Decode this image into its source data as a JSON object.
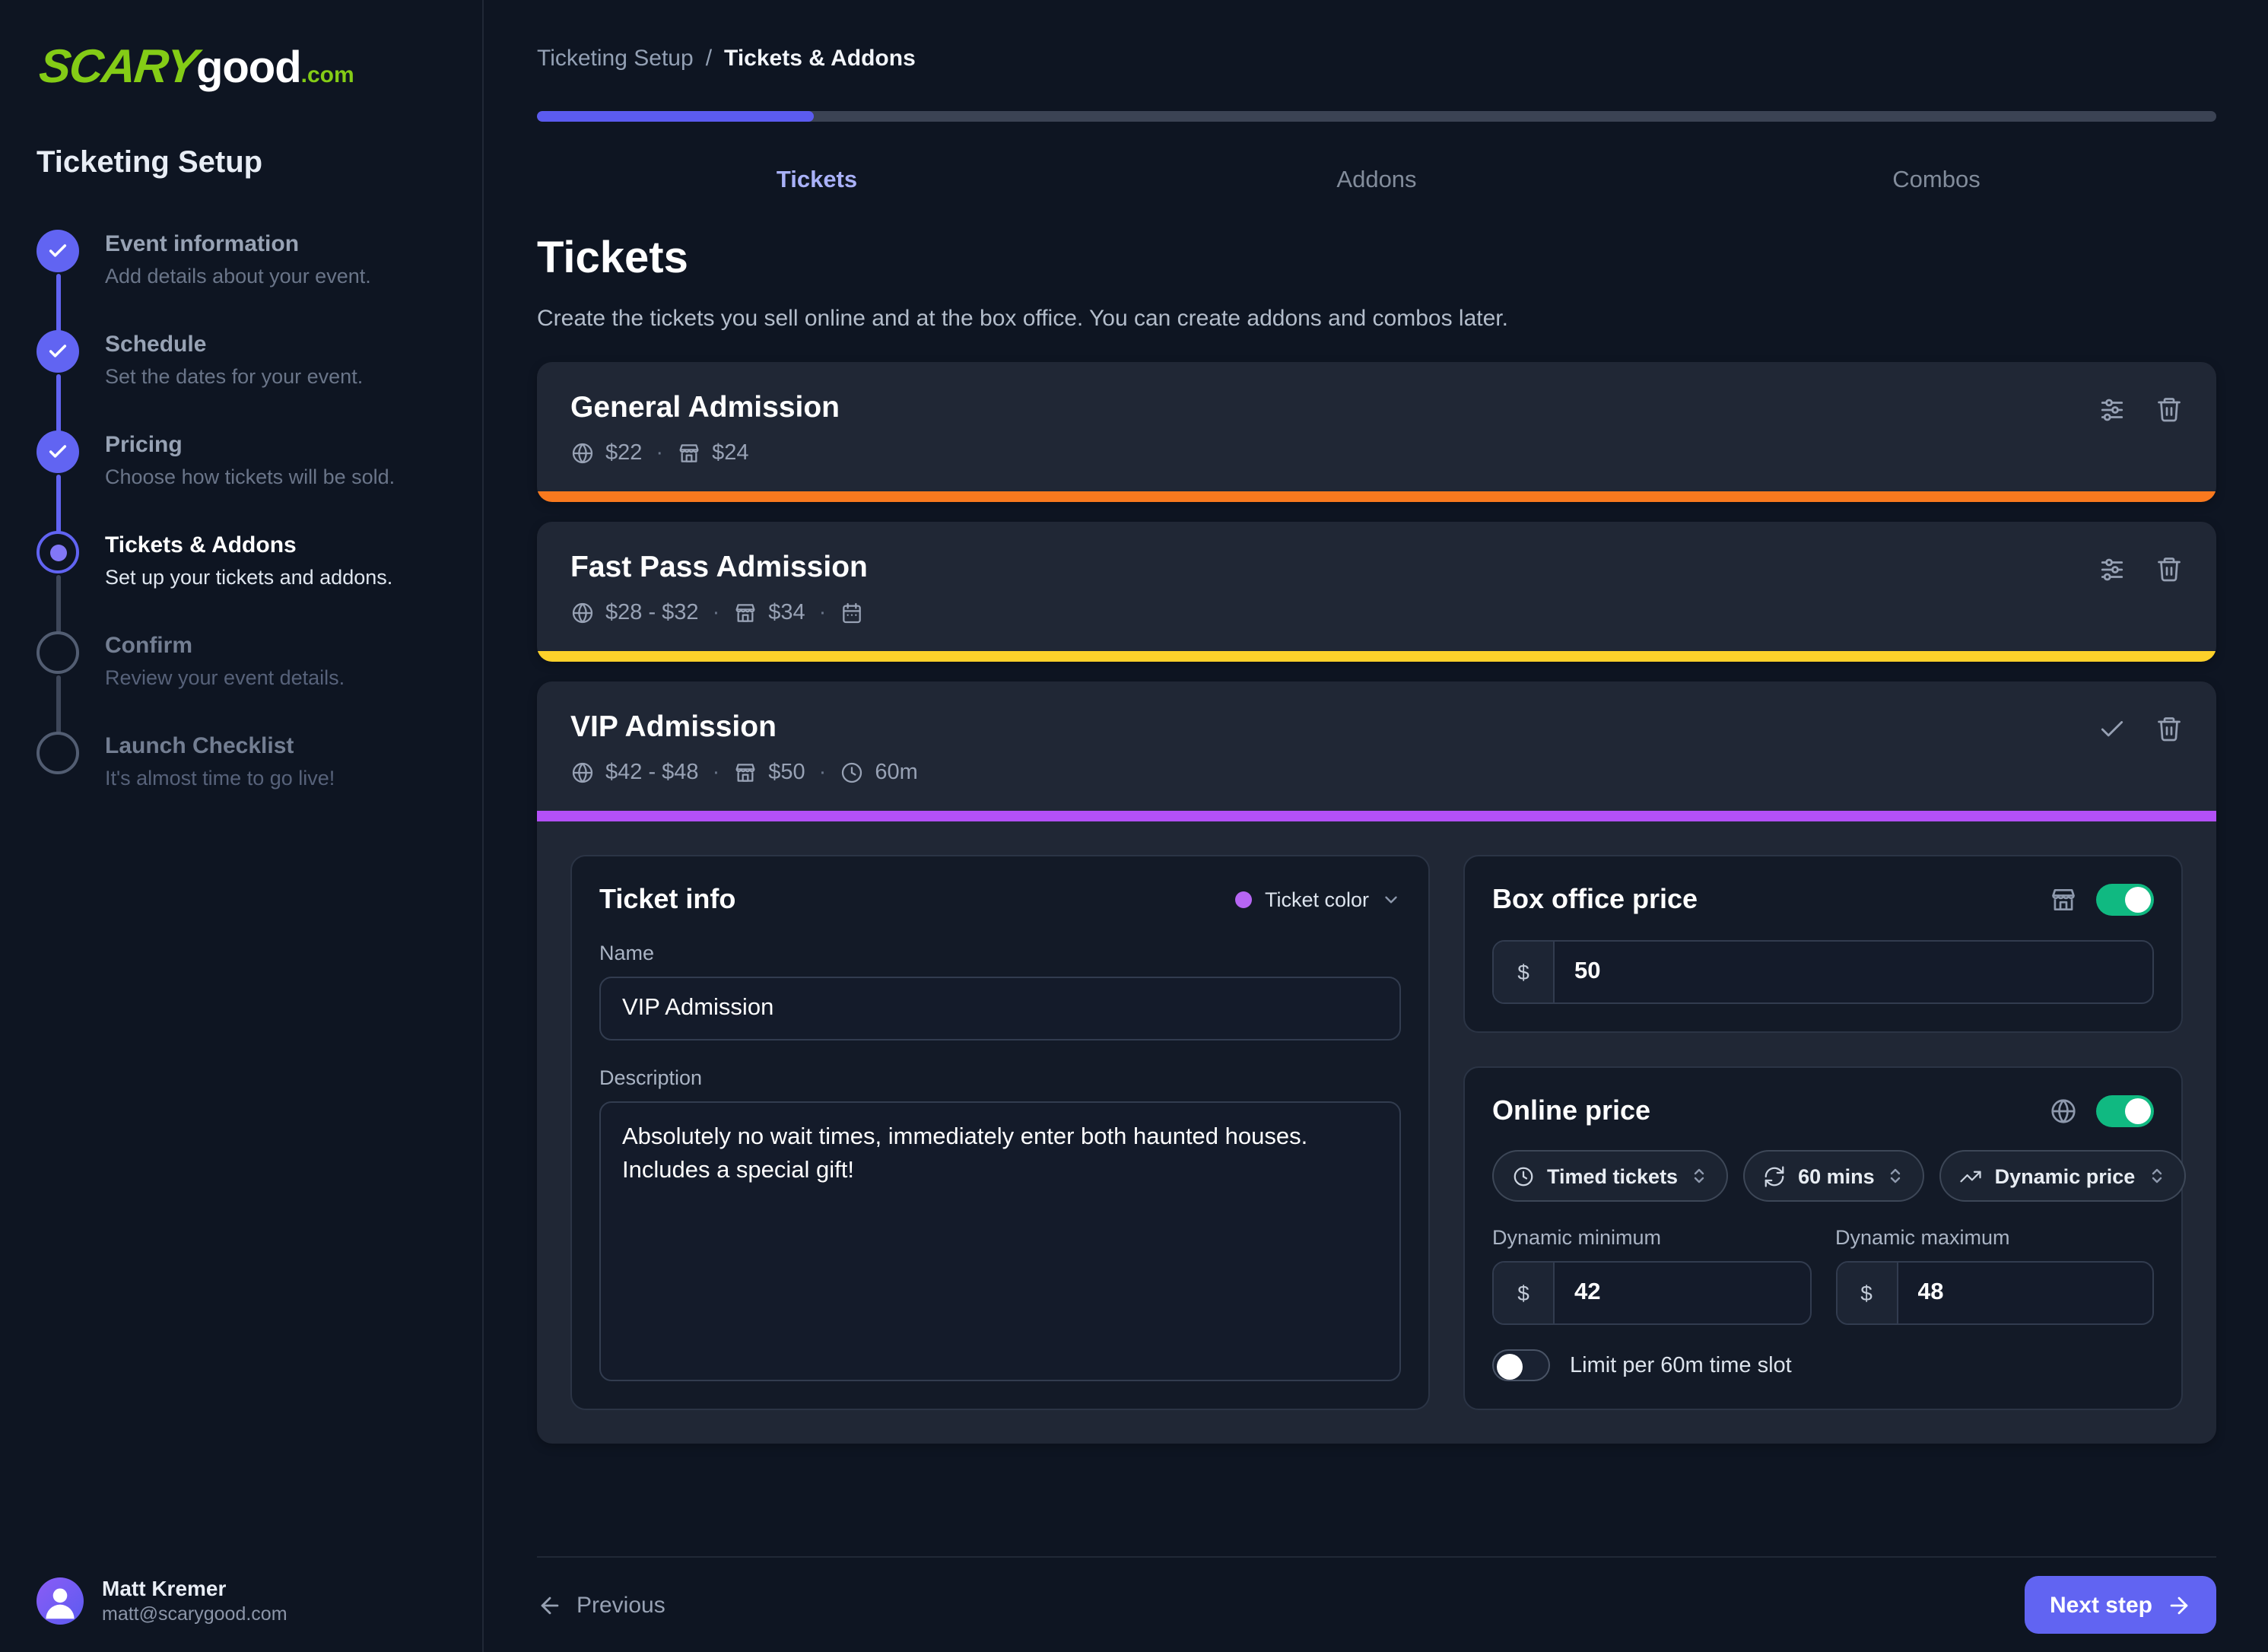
{
  "logo": {
    "part1": "SCARY",
    "part2": "good",
    "part3": ".com",
    "accent": "#84cc16"
  },
  "sidebar": {
    "title": "Ticketing Setup",
    "steps": [
      {
        "title": "Event information",
        "subtitle": "Add details about your event.",
        "state": "completed",
        "connector": "#6164f2"
      },
      {
        "title": "Schedule",
        "subtitle": "Set the dates for your event.",
        "state": "completed",
        "connector": "#6164f2"
      },
      {
        "title": "Pricing",
        "subtitle": "Choose how tickets will be sold.",
        "state": "completed",
        "connector": "#6164f2"
      },
      {
        "title": "Tickets & Addons",
        "subtitle": "Set up your tickets and addons.",
        "state": "active",
        "connector": "#3d4659"
      },
      {
        "title": "Confirm",
        "subtitle": "Review your event details.",
        "state": "upcoming",
        "connector": "#3d4659"
      },
      {
        "title": "Launch Checklist",
        "subtitle": "It's almost time to go live!",
        "state": "upcoming",
        "connector": null
      }
    ]
  },
  "user": {
    "name": "Matt Kremer",
    "email": "matt@scarygood.com"
  },
  "header": {
    "breadcrumb_parent": "Ticketing Setup",
    "breadcrumb_separator": "/",
    "breadcrumb_current": "Tickets & Addons",
    "progress_percent": 16.5,
    "progress_color": "#5b5bf0"
  },
  "tabs": [
    {
      "label": "Tickets",
      "active": true
    },
    {
      "label": "Addons",
      "active": false
    },
    {
      "label": "Combos",
      "active": false
    }
  ],
  "page": {
    "title": "Tickets",
    "description": "Create the tickets you sell online and at the box office. You can create addons and combos later."
  },
  "separator_dot": "·",
  "tickets": [
    {
      "name": "General Admission",
      "online_price": "$22",
      "box_price": "$24",
      "strip_color": "#f9791e"
    },
    {
      "name": "Fast Pass Admission",
      "online_price": "$28 - $32",
      "box_price": "$34",
      "strip_color": "#fdd12a"
    },
    {
      "name": "VIP Admission",
      "online_price": "$42 - $48",
      "box_price": "$50",
      "duration": "60m",
      "strip_color": "#b350f7"
    }
  ],
  "editor": {
    "ticket_info": {
      "heading": "Ticket info",
      "color_label": "Ticket color",
      "color_value": "#b666f3",
      "name_label": "Name",
      "name_value": "VIP Admission",
      "description_label": "Description",
      "description_value": "Absolutely no wait times, immediately enter both haunted houses. Includes a special gift!"
    },
    "box_office": {
      "heading": "Box office price",
      "currency": "$",
      "value": "50",
      "enabled": true
    },
    "online_price": {
      "heading": "Online price",
      "enabled": true,
      "selects": [
        {
          "label": "Timed tickets"
        },
        {
          "label": "60 mins"
        },
        {
          "label": "Dynamic price"
        }
      ],
      "min_label": "Dynamic minimum",
      "min_currency": "$",
      "min_value": "42",
      "max_label": "Dynamic maximum",
      "max_currency": "$",
      "max_value": "48",
      "limit_label": "Limit per 60m time slot",
      "limit_enabled": false
    }
  },
  "footer": {
    "previous": "Previous",
    "next": "Next step"
  }
}
